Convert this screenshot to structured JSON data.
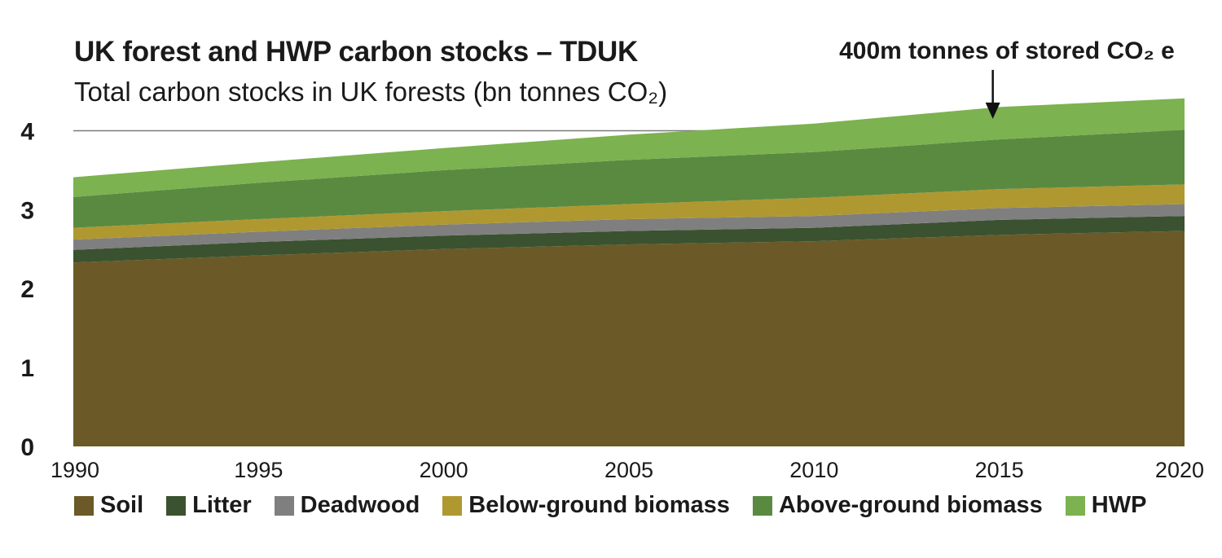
{
  "chart_data": {
    "type": "area",
    "stacked": true,
    "title": "UK forest and HWP carbon stocks – TDUK",
    "subtitle": "Total carbon stocks in UK forests (bn tonnes CO₂)",
    "x": [
      1990,
      1995,
      2000,
      2005,
      2010,
      2015,
      2020
    ],
    "x_ticks": [
      "1990",
      "1995",
      "2000",
      "2005",
      "2010",
      "2015",
      "2020"
    ],
    "y_ticks": [
      "0",
      "1",
      "2",
      "3",
      "4"
    ],
    "ylim": [
      0,
      4.5
    ],
    "xlim": [
      1990,
      2020
    ],
    "grid": false,
    "reference_line": 4,
    "legend_position": "bottom",
    "series": [
      {
        "name": "Soil",
        "color": "#6b5a27",
        "values": [
          2.33,
          2.42,
          2.5,
          2.56,
          2.6,
          2.68,
          2.73
        ]
      },
      {
        "name": "Litter",
        "color": "#3a5230",
        "values": [
          0.16,
          0.17,
          0.17,
          0.17,
          0.17,
          0.19,
          0.19
        ]
      },
      {
        "name": "Deadwood",
        "color": "#7f7f7f",
        "values": [
          0.13,
          0.13,
          0.14,
          0.15,
          0.15,
          0.15,
          0.15
        ]
      },
      {
        "name": "Below-ground biomass",
        "color": "#b09830",
        "values": [
          0.15,
          0.16,
          0.17,
          0.19,
          0.23,
          0.24,
          0.25
        ]
      },
      {
        "name": "Above-ground biomass",
        "color": "#5a8a40",
        "values": [
          0.39,
          0.46,
          0.52,
          0.56,
          0.58,
          0.63,
          0.69
        ]
      },
      {
        "name": "HWP",
        "color": "#7cb250",
        "values": [
          0.25,
          0.26,
          0.28,
          0.32,
          0.36,
          0.41,
          0.4
        ]
      }
    ],
    "annotation": {
      "text": "400m tonnes of stored CO₂ e",
      "x": 2015,
      "y_from": 4.77,
      "y_to": 4.15
    }
  }
}
